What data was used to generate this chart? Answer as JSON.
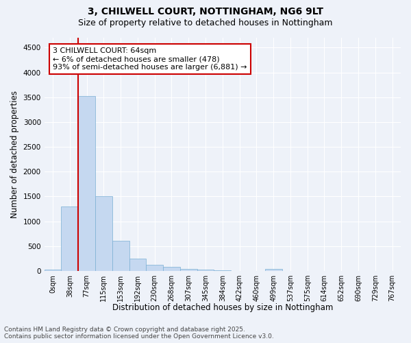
{
  "title_line1": "3, CHILWELL COURT, NOTTINGHAM, NG6 9LT",
  "title_line2": "Size of property relative to detached houses in Nottingham",
  "xlabel": "Distribution of detached houses by size in Nottingham",
  "ylabel": "Number of detached properties",
  "bar_color": "#c5d8f0",
  "bar_edge_color": "#7aafd4",
  "background_color": "#eef2f9",
  "grid_color": "#ffffff",
  "bin_labels": [
    "0sqm",
    "38sqm",
    "77sqm",
    "115sqm",
    "153sqm",
    "192sqm",
    "230sqm",
    "268sqm",
    "307sqm",
    "345sqm",
    "384sqm",
    "422sqm",
    "460sqm",
    "499sqm",
    "537sqm",
    "575sqm",
    "614sqm",
    "652sqm",
    "690sqm",
    "729sqm",
    "767sqm"
  ],
  "bar_values": [
    25,
    1300,
    3530,
    1500,
    600,
    250,
    120,
    75,
    40,
    20,
    5,
    0,
    0,
    40,
    0,
    0,
    0,
    0,
    0,
    0,
    0
  ],
  "ylim": [
    0,
    4700
  ],
  "yticks": [
    0,
    500,
    1000,
    1500,
    2000,
    2500,
    3000,
    3500,
    4000,
    4500
  ],
  "annotation_title": "3 CHILWELL COURT: 64sqm",
  "annotation_line1": "← 6% of detached houses are smaller (478)",
  "annotation_line2": "93% of semi-detached houses are larger (6,881) →",
  "vline_x_bin": 2,
  "annotation_box_color": "#ffffff",
  "annotation_box_edge": "#cc0000",
  "footer_line1": "Contains HM Land Registry data © Crown copyright and database right 2025.",
  "footer_line2": "Contains public sector information licensed under the Open Government Licence v3.0.",
  "title_fontsize": 10,
  "subtitle_fontsize": 9,
  "axis_label_fontsize": 8.5,
  "tick_fontsize": 7,
  "annotation_fontsize": 8,
  "footer_fontsize": 6.5
}
